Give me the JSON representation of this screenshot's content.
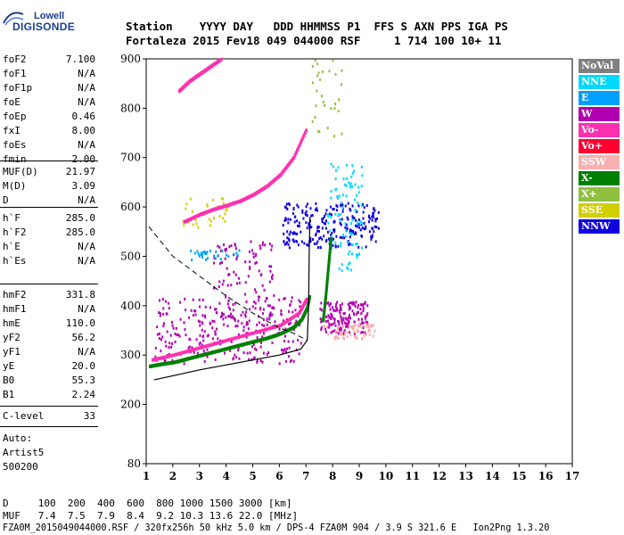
{
  "logo": {
    "line1": "Lowell",
    "line2": "DIGISONDE"
  },
  "header": {
    "labels": "Station    YYYY DAY   DDD HHMMSS P1  FFS S AXN PPS IGA PS",
    "values": "Fortaleza 2015 Fev18 049 044000 RSF     1 714 100 10+ 11"
  },
  "params": {
    "group1": [
      {
        "k": "foF2",
        "v": "7.100"
      },
      {
        "k": "foF1",
        "v": "N/A"
      },
      {
        "k": "foF1p",
        "v": "N/A"
      },
      {
        "k": "foE",
        "v": "N/A"
      },
      {
        "k": "foEp",
        "v": "0.46"
      },
      {
        "k": "fxI",
        "v": "8.00"
      },
      {
        "k": "foEs",
        "v": "N/A"
      },
      {
        "k": "fmin",
        "v": "2.00"
      }
    ],
    "group2": [
      {
        "k": "MUF(D)",
        "v": "21.97"
      },
      {
        "k": "M(D)",
        "v": "3.09"
      },
      {
        "k": "D",
        "v": "N/A"
      }
    ],
    "group3": [
      {
        "k": "h`F",
        "v": "285.0"
      },
      {
        "k": "h`F2",
        "v": "285.0"
      },
      {
        "k": "h`E",
        "v": "N/A"
      },
      {
        "k": "h`Es",
        "v": "N/A"
      }
    ],
    "group4": [
      {
        "k": "hmF2",
        "v": "331.8"
      },
      {
        "k": "hmF1",
        "v": "N/A"
      },
      {
        "k": "hmE",
        "v": "110.0"
      },
      {
        "k": "yF2",
        "v": "56.2"
      },
      {
        "k": "yF1",
        "v": "N/A"
      },
      {
        "k": "yE",
        "v": "20.0"
      },
      {
        "k": "B0",
        "v": "55.3"
      },
      {
        "k": "B1",
        "v": "2.24"
      }
    ],
    "group5": [
      {
        "k": "C-level",
        "v": "33"
      }
    ]
  },
  "auto": {
    "line1": "Auto:",
    "line2": "Artist5",
    "line3": "500200"
  },
  "legend": [
    {
      "label": "NoVal",
      "color": "#808080"
    },
    {
      "label": "NNE",
      "color": "#00d8ff"
    },
    {
      "label": "E",
      "color": "#00a0ff"
    },
    {
      "label": "W",
      "color": "#b000b0"
    },
    {
      "label": "Vo-",
      "color": "#ff30b0"
    },
    {
      "label": "Vo+",
      "color": "#ff0030"
    },
    {
      "label": "SSW",
      "color": "#f8b0b0"
    },
    {
      "label": "X-",
      "color": "#008000"
    },
    {
      "label": "X+",
      "color": "#90c040"
    },
    {
      "label": "SSE",
      "color": "#d0d000"
    },
    {
      "label": "NNW",
      "color": "#1000e0"
    }
  ],
  "bottom": {
    "d_line": "D     100  200  400  600  800 1000 1500 3000 [km]",
    "muf_line": "MUF   7.4  7.5  7.9  8.4  9.2 10.3 13.6 22.0 [MHz]",
    "file_line": "FZA0M_2015049044000.RSF / 320fx256h 50 kHz 5.0 km / DPS-4 FZA0M 904 / 3.9 S 321.6 E   Ion2Png 1.3.20"
  },
  "chart_data": {
    "type": "scatter",
    "title": "",
    "xlabel": "",
    "ylabel": "",
    "xlim": [
      1,
      17
    ],
    "ylim": [
      80,
      900
    ],
    "x_ticks": [
      "1",
      "2",
      "3",
      "4",
      "5",
      "6",
      "7",
      "8",
      "9",
      "10",
      "11",
      "12",
      "13",
      "14",
      "15",
      "16",
      "17"
    ],
    "y_ticks": [
      "80",
      "200",
      "300",
      "400",
      "500",
      "600",
      "700",
      "800",
      "900"
    ],
    "traces": [
      {
        "name": "O-trace F2",
        "color": "#008000",
        "points": [
          [
            1.1,
            277
          ],
          [
            1.5,
            281
          ],
          [
            2,
            285
          ],
          [
            2.5,
            292
          ],
          [
            3,
            299
          ],
          [
            3.5,
            306
          ],
          [
            4,
            313
          ],
          [
            4.5,
            320
          ],
          [
            5,
            327
          ],
          [
            5.5,
            334
          ],
          [
            6,
            343
          ],
          [
            6.5,
            356
          ],
          [
            6.8,
            372
          ],
          [
            7.0,
            395
          ],
          [
            7.1,
            420
          ]
        ]
      },
      {
        "name": "O-trace F2 outer",
        "color": "#ff30b0",
        "points": [
          [
            1.2,
            290
          ],
          [
            2,
            300
          ],
          [
            3,
            315
          ],
          [
            4,
            330
          ],
          [
            5,
            345
          ],
          [
            6,
            360
          ],
          [
            6.7,
            385
          ],
          [
            7.0,
            415
          ]
        ]
      },
      {
        "name": "Second hop",
        "color": "#ff30b0",
        "points": [
          [
            2.4,
            570
          ],
          [
            3,
            585
          ],
          [
            3.5,
            595
          ],
          [
            4,
            603
          ],
          [
            4.5,
            612
          ],
          [
            5,
            625
          ],
          [
            5.5,
            642
          ],
          [
            6,
            665
          ],
          [
            6.5,
            700
          ],
          [
            7.0,
            760
          ]
        ]
      },
      {
        "name": "Third hop",
        "color": "#ff30b0",
        "points": [
          [
            2.2,
            835
          ],
          [
            2.6,
            855
          ],
          [
            3,
            870
          ],
          [
            3.4,
            885
          ],
          [
            3.8,
            900
          ]
        ]
      },
      {
        "name": "X-trace",
        "color": "#008000",
        "points": [
          [
            7.6,
            370
          ],
          [
            7.7,
            420
          ],
          [
            7.8,
            480
          ],
          [
            7.9,
            540
          ]
        ]
      }
    ],
    "clouds": [
      {
        "name": "W spread low",
        "color": "#b000b0",
        "x": [
          1.3,
          6.8
        ],
        "y": [
          285,
          420
        ],
        "n": 260
      },
      {
        "name": "W spread 2",
        "color": "#b000b0",
        "x": [
          3.5,
          5.8
        ],
        "y": [
          360,
          540
        ],
        "n": 120
      },
      {
        "name": "W cluster right",
        "color": "#b000b0",
        "x": [
          7.5,
          9.3
        ],
        "y": [
          345,
          410
        ],
        "n": 160
      },
      {
        "name": "SSW cluster right",
        "color": "#f8b0b0",
        "x": [
          7.6,
          9.6
        ],
        "y": [
          335,
          365
        ],
        "n": 70
      },
      {
        "name": "NNW cluster",
        "color": "#1000e0",
        "x": [
          6.1,
          9.7
        ],
        "y": [
          520,
          610
        ],
        "n": 240
      },
      {
        "name": "NNE scatter",
        "color": "#00d8ff",
        "x": [
          7.8,
          9.1
        ],
        "y": [
          470,
          690
        ],
        "n": 90
      },
      {
        "name": "E scatter",
        "color": "#00a0ff",
        "x": [
          2.6,
          4.5
        ],
        "y": [
          495,
          515
        ],
        "n": 30
      },
      {
        "name": "Misc hop2",
        "color": "#d0d000",
        "x": [
          2.3,
          4.3
        ],
        "y": [
          560,
          620
        ],
        "n": 35
      },
      {
        "name": "Misc hop3",
        "color": "#90c040",
        "x": [
          7.2,
          8.5
        ],
        "y": [
          740,
          900
        ],
        "n": 30
      }
    ],
    "profile_solid": {
      "points": [
        [
          1.3,
          250
        ],
        [
          2,
          258
        ],
        [
          3,
          270
        ],
        [
          4,
          280
        ],
        [
          5,
          290
        ],
        [
          6,
          300
        ],
        [
          6.8,
          312
        ],
        [
          7.05,
          330
        ],
        [
          7.1,
          400
        ],
        [
          7.12,
          500
        ],
        [
          7.15,
          580
        ]
      ]
    },
    "profile_dashed": {
      "points": [
        [
          1.1,
          560
        ],
        [
          2,
          500
        ],
        [
          3,
          460
        ],
        [
          4,
          420
        ],
        [
          5,
          385
        ],
        [
          6,
          355
        ],
        [
          6.5,
          345
        ],
        [
          7.05,
          330
        ]
      ]
    }
  }
}
